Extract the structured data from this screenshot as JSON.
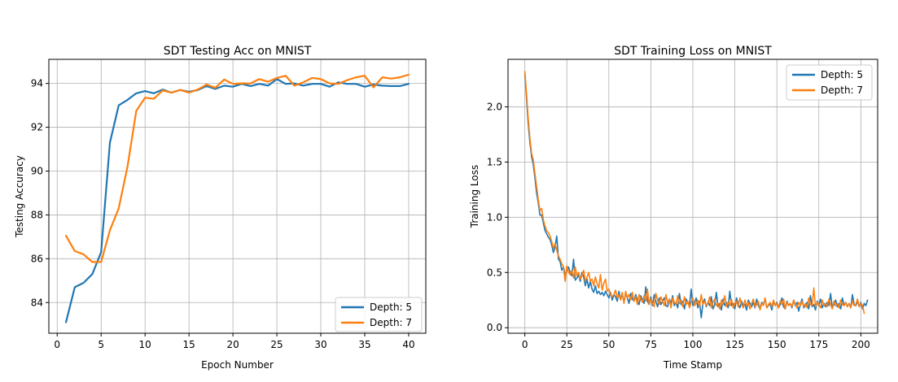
{
  "chart_data": [
    {
      "type": "line",
      "title": "SDT Testing Acc on MNIST",
      "xlabel": "Epoch Number",
      "ylabel": "Testing Accuracy",
      "xlim": [
        -0.95,
        41.95
      ],
      "ylim": [
        82.6,
        95.1
      ],
      "xticks": [
        0,
        5,
        10,
        15,
        20,
        25,
        30,
        35,
        40
      ],
      "yticks": [
        84,
        86,
        88,
        90,
        92,
        94
      ],
      "grid": true,
      "legend_position": "lower-right",
      "series": [
        {
          "name": "Depth: 5",
          "color": "#1f77b4",
          "x": [
            1,
            2,
            3,
            4,
            5,
            6,
            7,
            8,
            9,
            10,
            11,
            12,
            13,
            14,
            15,
            16,
            17,
            18,
            19,
            20,
            21,
            22,
            23,
            24,
            25,
            26,
            27,
            28,
            29,
            30,
            31,
            32,
            33,
            34,
            35,
            36,
            37,
            38,
            39,
            40
          ],
          "values": [
            83.1,
            84.7,
            84.9,
            85.3,
            86.3,
            91.3,
            93.0,
            93.25,
            93.55,
            93.65,
            93.55,
            93.72,
            93.58,
            93.7,
            93.62,
            93.7,
            93.88,
            93.75,
            93.9,
            93.85,
            93.98,
            93.88,
            93.98,
            93.9,
            94.2,
            93.98,
            94.0,
            93.9,
            93.98,
            93.98,
            93.85,
            94.05,
            93.98,
            93.98,
            93.85,
            93.95,
            93.9,
            93.88,
            93.88,
            93.98
          ]
        },
        {
          "name": "Depth: 7",
          "color": "#ff7f0e",
          "x": [
            1,
            2,
            3,
            4,
            5,
            6,
            7,
            8,
            9,
            10,
            11,
            12,
            13,
            14,
            15,
            16,
            17,
            18,
            19,
            20,
            21,
            22,
            23,
            24,
            25,
            26,
            27,
            28,
            29,
            30,
            31,
            32,
            33,
            34,
            35,
            36,
            37,
            38,
            39,
            40
          ],
          "values": [
            87.05,
            86.35,
            86.2,
            85.85,
            85.85,
            87.3,
            88.3,
            90.2,
            92.75,
            93.35,
            93.3,
            93.68,
            93.58,
            93.7,
            93.58,
            93.72,
            93.95,
            93.8,
            94.18,
            93.98,
            94.0,
            94.0,
            94.2,
            94.08,
            94.25,
            94.35,
            93.9,
            94.05,
            94.25,
            94.2,
            94.0,
            93.98,
            94.15,
            94.28,
            94.35,
            93.82,
            94.28,
            94.22,
            94.28,
            94.4
          ]
        }
      ]
    },
    {
      "type": "line",
      "title": "SDT Training Loss on MNIST",
      "xlabel": "Time Stamp",
      "ylabel": "Training Loss",
      "xlim": [
        -10,
        210
      ],
      "ylim": [
        -0.05,
        2.43
      ],
      "xticks": [
        0,
        25,
        50,
        75,
        100,
        125,
        150,
        175,
        200
      ],
      "yticks": [
        0.0,
        0.5,
        1.0,
        1.5,
        2.0
      ],
      "grid": true,
      "legend_position": "upper-right",
      "series": [
        {
          "name": "Depth: 5",
          "color": "#1f77b4",
          "x_start": 0,
          "x_step": 1,
          "values": [
            2.3,
            2.08,
            1.85,
            1.68,
            1.55,
            1.48,
            1.36,
            1.22,
            1.13,
            1.02,
            1.02,
            0.95,
            0.88,
            0.85,
            0.82,
            0.8,
            0.75,
            0.68,
            0.73,
            0.83,
            0.62,
            0.6,
            0.52,
            0.55,
            0.48,
            0.52,
            0.55,
            0.5,
            0.47,
            0.62,
            0.43,
            0.45,
            0.48,
            0.42,
            0.5,
            0.46,
            0.38,
            0.44,
            0.36,
            0.42,
            0.35,
            0.32,
            0.38,
            0.31,
            0.33,
            0.3,
            0.32,
            0.29,
            0.33,
            0.3,
            0.27,
            0.32,
            0.25,
            0.3,
            0.28,
            0.24,
            0.33,
            0.26,
            0.3,
            0.23,
            0.31,
            0.27,
            0.22,
            0.31,
            0.26,
            0.24,
            0.3,
            0.25,
            0.21,
            0.29,
            0.25,
            0.22,
            0.37,
            0.24,
            0.21,
            0.28,
            0.2,
            0.3,
            0.24,
            0.19,
            0.27,
            0.21,
            0.24,
            0.27,
            0.2,
            0.19,
            0.26,
            0.22,
            0.29,
            0.2,
            0.23,
            0.18,
            0.31,
            0.21,
            0.24,
            0.17,
            0.26,
            0.23,
            0.2,
            0.35,
            0.2,
            0.22,
            0.27,
            0.18,
            0.24,
            0.09,
            0.22,
            0.26,
            0.19,
            0.23,
            0.2,
            0.28,
            0.17,
            0.21,
            0.32,
            0.19,
            0.22,
            0.16,
            0.26,
            0.2,
            0.23,
            0.18,
            0.33,
            0.2,
            0.22,
            0.17,
            0.27,
            0.21,
            0.18,
            0.24,
            0.2,
            0.21,
            0.16,
            0.25,
            0.22,
            0.19,
            0.23,
            0.18,
            0.26,
            0.2,
            0.17,
            0.23,
            0.21,
            0.26,
            0.18,
            0.2,
            0.22,
            0.16,
            0.24,
            0.2,
            0.23,
            0.18,
            0.21,
            0.27,
            0.19,
            0.17,
            0.24,
            0.2,
            0.22,
            0.18,
            0.25,
            0.2,
            0.23,
            0.15,
            0.21,
            0.26,
            0.18,
            0.2,
            0.23,
            0.17,
            0.29,
            0.19,
            0.21,
            0.16,
            0.24,
            0.2,
            0.26,
            0.18,
            0.22,
            0.19,
            0.23,
            0.2,
            0.31,
            0.18,
            0.21,
            0.25,
            0.19,
            0.22,
            0.17,
            0.27,
            0.2,
            0.23,
            0.19,
            0.22,
            0.18,
            0.3,
            0.21,
            0.2,
            0.24,
            0.19,
            0.23,
            0.17,
            0.22,
            0.2,
            0.25
          ]
        },
        {
          "name": "Depth: 7",
          "color": "#ff7f0e",
          "x_start": 0,
          "x_step": 1,
          "values": [
            2.32,
            2.12,
            1.9,
            1.72,
            1.58,
            1.52,
            1.4,
            1.28,
            1.16,
            1.06,
            1.08,
            0.98,
            0.92,
            0.88,
            0.86,
            0.83,
            0.78,
            0.72,
            0.76,
            0.7,
            0.65,
            0.62,
            0.58,
            0.55,
            0.42,
            0.56,
            0.5,
            0.48,
            0.52,
            0.45,
            0.55,
            0.47,
            0.5,
            0.44,
            0.47,
            0.52,
            0.42,
            0.46,
            0.5,
            0.42,
            0.44,
            0.38,
            0.46,
            0.4,
            0.36,
            0.48,
            0.34,
            0.4,
            0.44,
            0.33,
            0.35,
            0.3,
            0.28,
            0.3,
            0.34,
            0.27,
            0.3,
            0.25,
            0.32,
            0.22,
            0.33,
            0.27,
            0.3,
            0.25,
            0.32,
            0.24,
            0.28,
            0.21,
            0.3,
            0.26,
            0.23,
            0.29,
            0.24,
            0.35,
            0.21,
            0.26,
            0.22,
            0.19,
            0.31,
            0.25,
            0.21,
            0.28,
            0.24,
            0.2,
            0.3,
            0.22,
            0.26,
            0.18,
            0.27,
            0.23,
            0.21,
            0.29,
            0.22,
            0.25,
            0.19,
            0.28,
            0.21,
            0.24,
            0.18,
            0.23,
            0.27,
            0.2,
            0.22,
            0.25,
            0.19,
            0.3,
            0.21,
            0.24,
            0.2,
            0.22,
            0.28,
            0.18,
            0.23,
            0.26,
            0.2,
            0.22,
            0.17,
            0.25,
            0.21,
            0.29,
            0.19,
            0.23,
            0.2,
            0.26,
            0.18,
            0.22,
            0.24,
            0.19,
            0.27,
            0.21,
            0.18,
            0.25,
            0.2,
            0.23,
            0.17,
            0.22,
            0.26,
            0.19,
            0.21,
            0.24,
            0.16,
            0.22,
            0.2,
            0.27,
            0.18,
            0.21,
            0.23,
            0.19,
            0.25,
            0.2,
            0.22,
            0.18,
            0.24,
            0.21,
            0.26,
            0.17,
            0.23,
            0.2,
            0.22,
            0.19,
            0.25,
            0.21,
            0.18,
            0.23,
            0.2,
            0.24,
            0.19,
            0.22,
            0.18,
            0.27,
            0.21,
            0.2,
            0.36,
            0.19,
            0.23,
            0.21,
            0.18,
            0.25,
            0.2,
            0.22,
            0.19,
            0.26,
            0.21,
            0.17,
            0.24,
            0.2,
            0.22,
            0.18,
            0.25,
            0.21,
            0.2,
            0.23,
            0.19,
            0.22,
            0.18,
            0.24,
            0.2,
            0.21,
            0.26,
            0.19,
            0.22,
            0.2,
            0.13
          ]
        }
      ]
    }
  ]
}
